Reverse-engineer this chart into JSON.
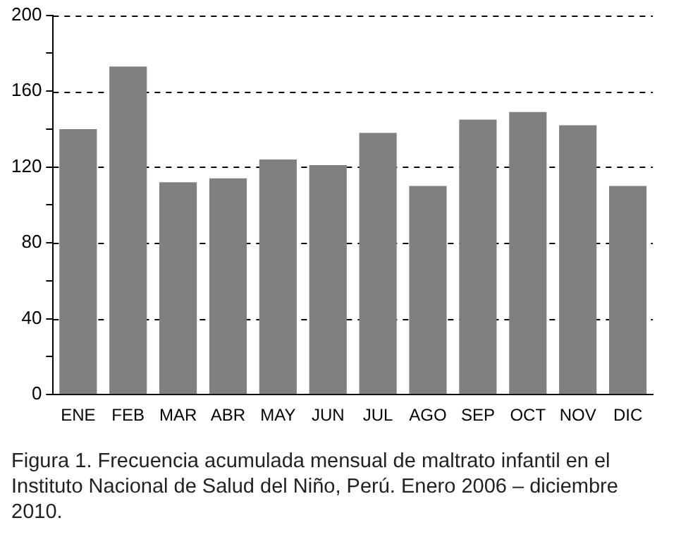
{
  "chart_data": {
    "type": "bar",
    "categories": [
      "ENE",
      "FEB",
      "MAR",
      "ABR",
      "MAY",
      "JUN",
      "JUL",
      "AGO",
      "SEP",
      "OCT",
      "NOV",
      "DIC"
    ],
    "values": [
      140,
      173,
      112,
      114,
      124,
      121,
      138,
      110,
      145,
      149,
      142,
      110
    ],
    "color": "#808083",
    "ylim": [
      0,
      200
    ],
    "yticks": [
      0,
      {
        "value": 20,
        "label": null
      },
      40,
      {
        "value": 60,
        "label": null
      },
      80,
      {
        "value": 100,
        "label": null
      },
      120,
      {
        "value": 140,
        "label": null
      },
      160,
      {
        "value": 180,
        "label": null
      },
      200
    ],
    "grid": "y",
    "line_style": "dashed",
    "annotations": [
      "Figura 1. Frecuencia acumulada mensual de maltrato infantil en el Instituto Nacional de Salud del Niño, Perú. Enero 2006 – diciembre 2010."
    ]
  }
}
